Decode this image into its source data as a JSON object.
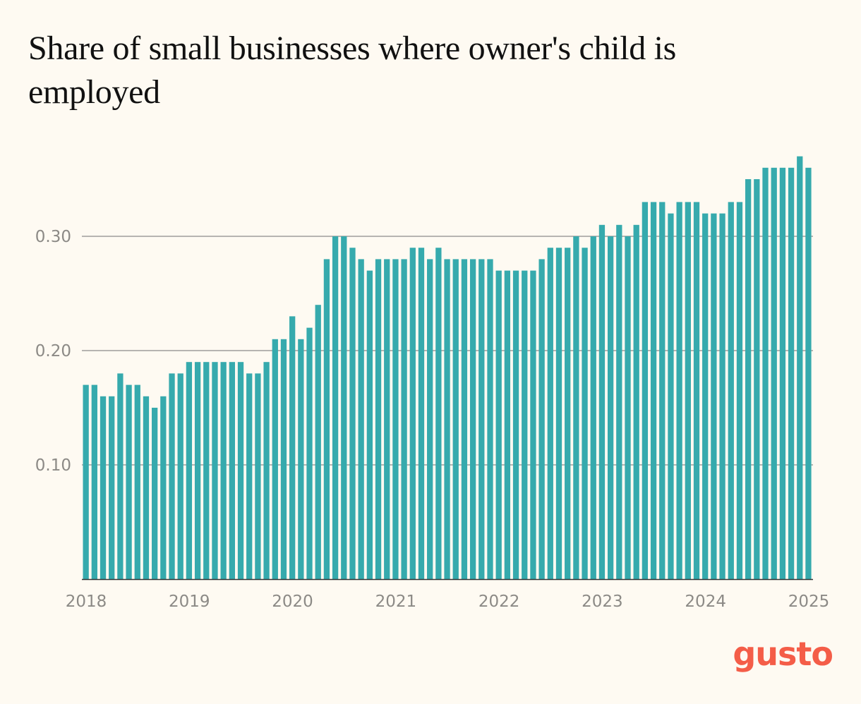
{
  "chart_data": {
    "type": "bar",
    "title": "Share of small businesses where owner's child is employed",
    "xlabel": "",
    "ylabel": "",
    "ylim": [
      0,
      0.375
    ],
    "yticks": [
      0.1,
      0.2,
      0.3
    ],
    "ytick_labels": [
      "0.10",
      "0.20",
      "0.30"
    ],
    "xtick_labels": [
      "2018",
      "2019",
      "2020",
      "2021",
      "2022",
      "2023",
      "2024",
      "2025"
    ],
    "period": "monthly, Jan 2018 - Jan 2025",
    "grid": true,
    "legend": "none",
    "values": [
      0.17,
      0.17,
      0.16,
      0.16,
      0.18,
      0.17,
      0.17,
      0.16,
      0.15,
      0.16,
      0.18,
      0.18,
      0.19,
      0.19,
      0.19,
      0.19,
      0.19,
      0.19,
      0.19,
      0.18,
      0.18,
      0.19,
      0.21,
      0.21,
      0.23,
      0.21,
      0.22,
      0.24,
      0.28,
      0.3,
      0.3,
      0.29,
      0.28,
      0.27,
      0.28,
      0.28,
      0.28,
      0.28,
      0.29,
      0.29,
      0.28,
      0.29,
      0.28,
      0.28,
      0.28,
      0.28,
      0.28,
      0.28,
      0.27,
      0.27,
      0.27,
      0.27,
      0.27,
      0.28,
      0.29,
      0.29,
      0.29,
      0.3,
      0.29,
      0.3,
      0.31,
      0.3,
      0.31,
      0.3,
      0.31,
      0.33,
      0.33,
      0.33,
      0.32,
      0.33,
      0.33,
      0.33,
      0.32,
      0.32,
      0.32,
      0.33,
      0.33,
      0.35,
      0.35,
      0.36,
      0.36,
      0.36,
      0.36,
      0.37,
      0.36
    ]
  },
  "brand": {
    "name": "gusto"
  },
  "colors": {
    "bar": "#36aaad",
    "gridline": "#8a8a8a",
    "axis": "#333333",
    "brand": "#f45d48",
    "tick_text": "#8c8a86"
  }
}
